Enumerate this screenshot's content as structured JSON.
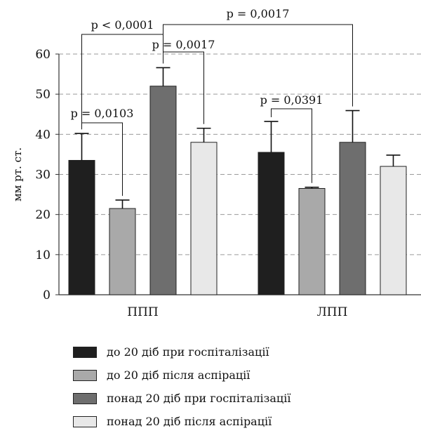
{
  "chart_data": {
    "type": "bar",
    "ylabel": "мм рт. ст.",
    "ylim": [
      0,
      60
    ],
    "yticks": [
      0,
      10,
      20,
      30,
      40,
      50,
      60
    ],
    "grid": "horizontal dashed",
    "categories": [
      "ППП",
      "ЛПП"
    ],
    "series": [
      {
        "name": "до 20 діб при госпіталізації",
        "color": "#1f1f1f",
        "values": [
          33.5,
          35.5
        ],
        "errors": [
          6.7,
          7.7
        ]
      },
      {
        "name": "до 20 діб після аспірації",
        "color": "#a9a9a9",
        "values": [
          21.5,
          26.5
        ],
        "errors": [
          2.1,
          0.3
        ]
      },
      {
        "name": "понад 20 діб при госпіталізації",
        "color": "#6e6e6e",
        "values": [
          52.0,
          38.0
        ],
        "errors": [
          4.6,
          7.9
        ]
      },
      {
        "name": "понад 20 діб після аспірації",
        "color": "#e8e8e8",
        "values": [
          38.0,
          32.0
        ],
        "errors": [
          3.5,
          2.8
        ]
      }
    ],
    "annotations": [
      {
        "label": "p = 0,0103",
        "from": [
          0,
          0
        ],
        "to": [
          0,
          1
        ]
      },
      {
        "label": "p < 0,0001",
        "from": [
          0,
          0
        ],
        "to": [
          0,
          2
        ]
      },
      {
        "label": "p = 0,0017",
        "from": [
          0,
          2
        ],
        "to": [
          0,
          3
        ]
      },
      {
        "label": "p = 0,0017",
        "from": [
          0,
          2
        ],
        "to": [
          1,
          2
        ]
      },
      {
        "label": "p = 0,0391",
        "from": [
          1,
          0
        ],
        "to": [
          1,
          1
        ]
      }
    ]
  }
}
